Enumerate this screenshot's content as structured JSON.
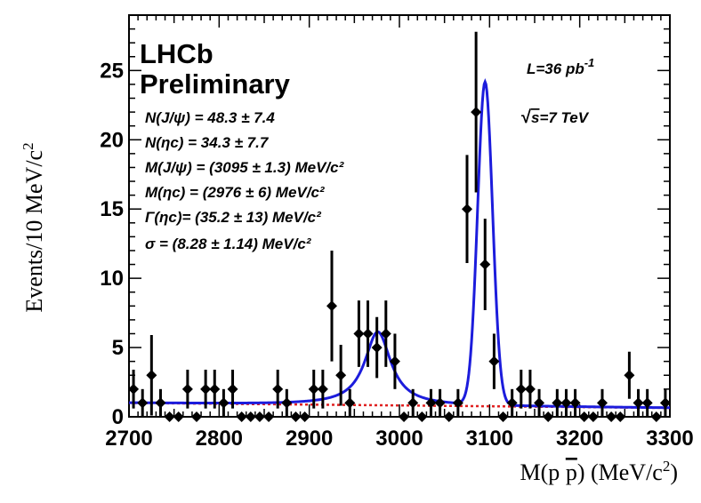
{
  "chart_data": {
    "type": "scatter",
    "xlabel_main": "M(p ",
    "xlabel_p": "p",
    "xlabel_unit": ") (MeV/c",
    "xlabel_sup": "2",
    "xlabel_end": ")",
    "ylabel_main": "Events/10 MeV/c",
    "ylabel_sup": "2",
    "xlim": [
      2700,
      3300
    ],
    "ylim": [
      0,
      29
    ],
    "x_ticks": [
      2700,
      2800,
      2900,
      3000,
      3100,
      3200,
      3300
    ],
    "y_ticks": [
      0,
      5,
      10,
      15,
      20,
      25
    ],
    "logo": [
      "LHCb",
      "Preliminary"
    ],
    "luminosity": {
      "main": "L=36 pb",
      "sup": "-1"
    },
    "energy": {
      "sqrt": "√",
      "s": "s",
      "rest": "=7 TeV"
    },
    "fit_results": [
      "N(J/ψ) = 48.3 ± 7.4",
      "N(ηc) = 34.3 ± 7.7",
      "M(J/ψ) = (3095 ± 1.3) MeV/c²",
      "M(ηc) = (2976 ± 6) MeV/c²",
      "Γ(ηc)= (35.2 ± 13) MeV/c²",
      "σ = (8.28 ± 1.14) MeV/c²"
    ],
    "series": [
      {
        "name": "Data",
        "kind": "points",
        "color": "#000000",
        "x": [
          2705,
          2715,
          2725,
          2735,
          2745,
          2755,
          2765,
          2775,
          2785,
          2795,
          2805,
          2815,
          2825,
          2835,
          2845,
          2855,
          2865,
          2875,
          2885,
          2895,
          2905,
          2915,
          2925,
          2935,
          2945,
          2955,
          2965,
          2975,
          2985,
          2995,
          3005,
          3015,
          3025,
          3035,
          3045,
          3055,
          3065,
          3075,
          3085,
          3095,
          3105,
          3115,
          3125,
          3135,
          3145,
          3155,
          3165,
          3175,
          3185,
          3195,
          3205,
          3215,
          3225,
          3235,
          3245,
          3255,
          3265,
          3275,
          3285,
          3295
        ],
        "y": [
          2,
          1,
          3,
          1,
          0,
          0,
          2,
          0,
          2,
          2,
          1,
          2,
          0,
          0,
          0,
          0,
          2,
          1,
          0,
          0,
          2,
          2,
          8,
          3,
          1,
          6,
          6,
          5,
          6,
          4,
          0,
          1,
          0,
          1,
          1,
          0,
          1,
          15,
          22,
          11,
          4,
          0,
          1,
          2,
          2,
          1,
          0,
          1,
          1,
          1,
          0,
          0,
          1,
          0,
          0,
          3,
          1,
          1,
          0,
          1
        ],
        "err": [
          1.4,
          1.0,
          2.9,
          1.0,
          0.0,
          0.0,
          1.4,
          0.0,
          1.4,
          1.4,
          1.0,
          1.4,
          0.0,
          0.0,
          0.0,
          0.0,
          1.4,
          1.0,
          0.0,
          0.0,
          1.4,
          1.4,
          4.0,
          2.2,
          1.0,
          2.4,
          2.4,
          2.2,
          2.4,
          2.0,
          0.0,
          1.0,
          0.0,
          1.0,
          1.0,
          0.0,
          1.0,
          3.9,
          5.8,
          3.3,
          2.0,
          0.0,
          1.0,
          1.4,
          1.4,
          1.0,
          0.0,
          1.0,
          1.0,
          1.0,
          0.0,
          0.0,
          1.0,
          0.0,
          0.0,
          1.7,
          1.0,
          1.0,
          0.0,
          1.0
        ]
      },
      {
        "name": "Total fit",
        "kind": "line",
        "color": "#1c1cdc",
        "background": {
          "a": 1.0,
          "b": -0.0006
        },
        "eta_c": {
          "mass": 2976,
          "width": 35.2,
          "amplitude": 5.3
        },
        "jpsi": {
          "mass": 3095,
          "sigma": 8.28,
          "amplitude": 23.3
        }
      },
      {
        "name": "Background",
        "kind": "line",
        "dashed": true,
        "color": "#e02020",
        "background": {
          "a": 1.0,
          "b": -0.0006
        }
      }
    ]
  }
}
